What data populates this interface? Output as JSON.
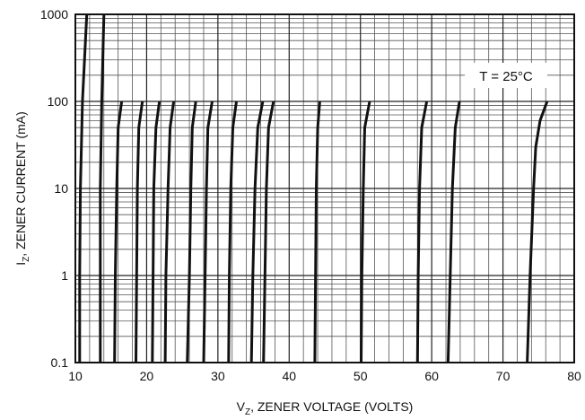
{
  "chart_data": {
    "type": "line",
    "title": "",
    "xlabel": "V",
    "xlabel_sub": "Z",
    "xlabel_rest": ", ZENER VOLTAGE (VOLTS)",
    "ylabel": "I",
    "ylabel_sub": "Z",
    "ylabel_rest": ", ZENER CURRENT (mA)",
    "xlim": [
      10,
      80
    ],
    "ylim": [
      0.1,
      1000
    ],
    "yscale": "log",
    "grid": true,
    "x_ticks": [
      10,
      20,
      30,
      40,
      50,
      60,
      70,
      80
    ],
    "x_tick_labels": [
      "10",
      "20",
      "30",
      "40",
      "50",
      "60",
      "70",
      "80"
    ],
    "y_ticks": [
      0.1,
      1,
      10,
      100,
      1000
    ],
    "y_tick_labels": [
      "0.1",
      "1",
      "10",
      "100",
      "1000"
    ],
    "annotation": "T = 25°C",
    "series": [
      {
        "points": [
          [
            10.6,
            0.1
          ],
          [
            10.6,
            1
          ],
          [
            10.7,
            10
          ],
          [
            11.0,
            100
          ],
          [
            11.6,
            1000
          ]
        ]
      },
      {
        "points": [
          [
            13.5,
            0.1
          ],
          [
            13.5,
            1
          ],
          [
            13.5,
            10
          ],
          [
            13.7,
            100
          ],
          [
            14.0,
            1000
          ]
        ]
      },
      {
        "points": [
          [
            15.5,
            0.1
          ],
          [
            15.6,
            1
          ],
          [
            15.8,
            10
          ],
          [
            16.0,
            50
          ],
          [
            16.5,
            100
          ]
        ]
      },
      {
        "points": [
          [
            18.5,
            0.1
          ],
          [
            18.6,
            1
          ],
          [
            18.7,
            10
          ],
          [
            18.9,
            50
          ],
          [
            19.4,
            100
          ]
        ]
      },
      {
        "points": [
          [
            20.8,
            0.1
          ],
          [
            20.9,
            1
          ],
          [
            21.0,
            10
          ],
          [
            21.3,
            50
          ],
          [
            21.8,
            100
          ]
        ]
      },
      {
        "points": [
          [
            22.6,
            0.1
          ],
          [
            22.7,
            1
          ],
          [
            23.0,
            10
          ],
          [
            23.3,
            50
          ],
          [
            23.8,
            100
          ]
        ]
      },
      {
        "points": [
          [
            25.7,
            0.1
          ],
          [
            26.0,
            1
          ],
          [
            26.2,
            10
          ],
          [
            26.4,
            50
          ],
          [
            26.9,
            100
          ]
        ]
      },
      {
        "points": [
          [
            28.0,
            0.1
          ],
          [
            28.2,
            1
          ],
          [
            28.4,
            10
          ],
          [
            28.6,
            50
          ],
          [
            29.2,
            100
          ]
        ]
      },
      {
        "points": [
          [
            31.5,
            0.1
          ],
          [
            31.6,
            1
          ],
          [
            31.8,
            10
          ],
          [
            32.1,
            50
          ],
          [
            32.6,
            100
          ]
        ]
      },
      {
        "points": [
          [
            34.7,
            0.1
          ],
          [
            34.9,
            1
          ],
          [
            35.2,
            10
          ],
          [
            35.6,
            50
          ],
          [
            36.3,
            100
          ]
        ]
      },
      {
        "points": [
          [
            36.4,
            0.1
          ],
          [
            36.6,
            1
          ],
          [
            36.8,
            10
          ],
          [
            37.1,
            50
          ],
          [
            37.8,
            100
          ]
        ]
      },
      {
        "points": [
          [
            43.6,
            0.1
          ],
          [
            43.7,
            1
          ],
          [
            43.8,
            10
          ],
          [
            44.0,
            50
          ],
          [
            44.3,
            100
          ]
        ]
      },
      {
        "points": [
          [
            50.1,
            0.1
          ],
          [
            50.2,
            1
          ],
          [
            50.4,
            10
          ],
          [
            50.6,
            50
          ],
          [
            51.3,
            100
          ]
        ]
      },
      {
        "points": [
          [
            58.0,
            0.1
          ],
          [
            58.1,
            1
          ],
          [
            58.3,
            10
          ],
          [
            58.6,
            50
          ],
          [
            59.3,
            100
          ]
        ]
      },
      {
        "points": [
          [
            62.3,
            0.1
          ],
          [
            62.6,
            1
          ],
          [
            62.9,
            10
          ],
          [
            63.3,
            50
          ],
          [
            63.9,
            100
          ]
        ]
      },
      {
        "points": [
          [
            73.4,
            0.1
          ],
          [
            73.8,
            1
          ],
          [
            74.3,
            10
          ],
          [
            74.6,
            30
          ],
          [
            75.2,
            60
          ],
          [
            76.2,
            100
          ]
        ]
      }
    ]
  }
}
